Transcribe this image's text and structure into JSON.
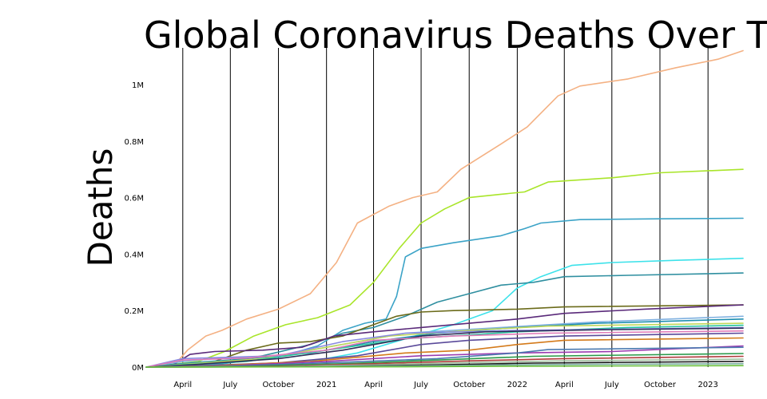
{
  "chart_data": {
    "type": "line",
    "title": "Global Coronavirus Deaths Over Time",
    "ylabel": "Deaths",
    "xlabel": "",
    "x_range": [
      "2020-01-22",
      "2023-03-09"
    ],
    "ylim": [
      0,
      1130000
    ],
    "y_ticks": [
      {
        "value": 0,
        "label": "0M"
      },
      {
        "value": 200000,
        "label": "0.2M"
      },
      {
        "value": 400000,
        "label": "0.4M"
      },
      {
        "value": 600000,
        "label": "0.6M"
      },
      {
        "value": 800000,
        "label": "0.8M"
      },
      {
        "value": 1000000,
        "label": "1M"
      }
    ],
    "x_ticks": [
      {
        "date": "2020-04-01",
        "label": "April"
      },
      {
        "date": "2020-07-01",
        "label": "July"
      },
      {
        "date": "2020-10-01",
        "label": "October"
      },
      {
        "date": "2021-01-01",
        "label": "2021"
      },
      {
        "date": "2021-04-01",
        "label": "April"
      },
      {
        "date": "2021-07-01",
        "label": "July"
      },
      {
        "date": "2021-10-01",
        "label": "October"
      },
      {
        "date": "2022-01-01",
        "label": "2022"
      },
      {
        "date": "2022-04-01",
        "label": "April"
      },
      {
        "date": "2022-07-01",
        "label": "July"
      },
      {
        "date": "2022-10-01",
        "label": "October"
      },
      {
        "date": "2023-01-01",
        "label": "2023"
      }
    ],
    "grid": {
      "vertical": true,
      "horizontal": false
    },
    "legend": "none",
    "series": [
      {
        "color": "#f4b183",
        "points": [
          [
            "2020-01-22",
            0
          ],
          [
            "2020-03-15",
            5000
          ],
          [
            "2020-04-10",
            60000
          ],
          [
            "2020-05-15",
            110000
          ],
          [
            "2020-06-15",
            130000
          ],
          [
            "2020-08-01",
            170000
          ],
          [
            "2020-10-01",
            205000
          ],
          [
            "2020-12-01",
            260000
          ],
          [
            "2021-01-20",
            370000
          ],
          [
            "2021-03-01",
            510000
          ],
          [
            "2021-05-01",
            570000
          ],
          [
            "2021-06-15",
            600000
          ],
          [
            "2021-08-01",
            620000
          ],
          [
            "2021-09-15",
            700000
          ],
          [
            "2021-12-01",
            790000
          ],
          [
            "2022-01-20",
            850000
          ],
          [
            "2022-03-20",
            960000
          ],
          [
            "2022-05-01",
            995000
          ],
          [
            "2022-08-01",
            1020000
          ],
          [
            "2022-11-01",
            1060000
          ],
          [
            "2023-01-20",
            1090000
          ],
          [
            "2023-03-09",
            1120000
          ]
        ]
      },
      {
        "color": "#a9e52a",
        "points": [
          [
            "2020-01-22",
            0
          ],
          [
            "2020-05-01",
            20000
          ],
          [
            "2020-06-20",
            55000
          ],
          [
            "2020-08-15",
            110000
          ],
          [
            "2020-10-15",
            150000
          ],
          [
            "2020-12-15",
            175000
          ],
          [
            "2021-02-15",
            220000
          ],
          [
            "2021-04-01",
            300000
          ],
          [
            "2021-05-20",
            420000
          ],
          [
            "2021-07-01",
            510000
          ],
          [
            "2021-08-15",
            560000
          ],
          [
            "2021-10-01",
            600000
          ],
          [
            "2021-12-01",
            612000
          ],
          [
            "2022-01-15",
            620000
          ],
          [
            "2022-03-01",
            655000
          ],
          [
            "2022-07-01",
            670000
          ],
          [
            "2022-10-01",
            688000
          ],
          [
            "2023-03-09",
            700000
          ]
        ]
      },
      {
        "color": "#3ba3c7",
        "points": [
          [
            "2020-01-22",
            0
          ],
          [
            "2020-03-20",
            2000
          ],
          [
            "2020-05-01",
            8000
          ],
          [
            "2020-06-15",
            12000
          ],
          [
            "2020-08-01",
            22000
          ],
          [
            "2020-10-01",
            35000
          ],
          [
            "2020-12-15",
            75000
          ],
          [
            "2021-02-01",
            130000
          ],
          [
            "2021-03-15",
            155000
          ],
          [
            "2021-04-25",
            170000
          ],
          [
            "2021-05-15",
            250000
          ],
          [
            "2021-06-01",
            390000
          ],
          [
            "2021-07-01",
            420000
          ],
          [
            "2021-09-01",
            440000
          ],
          [
            "2021-12-01",
            465000
          ],
          [
            "2022-01-15",
            490000
          ],
          [
            "2022-02-15",
            510000
          ],
          [
            "2022-05-01",
            522000
          ],
          [
            "2022-10-01",
            525000
          ],
          [
            "2023-03-09",
            527000
          ]
        ]
      },
      {
        "color": "#3de2ea",
        "points": [
          [
            "2020-01-22",
            0
          ],
          [
            "2020-05-01",
            1000
          ],
          [
            "2020-09-01",
            6000
          ],
          [
            "2020-12-01",
            20000
          ],
          [
            "2021-03-01",
            50000
          ],
          [
            "2021-06-01",
            100000
          ],
          [
            "2021-09-01",
            150000
          ],
          [
            "2021-11-15",
            200000
          ],
          [
            "2022-01-01",
            280000
          ],
          [
            "2022-02-15",
            320000
          ],
          [
            "2022-04-15",
            360000
          ],
          [
            "2022-07-01",
            370000
          ],
          [
            "2022-11-01",
            378000
          ],
          [
            "2023-03-09",
            385000
          ]
        ]
      },
      {
        "color": "#2f8fa0",
        "points": [
          [
            "2020-01-22",
            0
          ],
          [
            "2020-05-01",
            10000
          ],
          [
            "2020-07-01",
            20000
          ],
          [
            "2020-09-01",
            40000
          ],
          [
            "2020-12-01",
            80000
          ],
          [
            "2021-02-01",
            120000
          ],
          [
            "2021-04-01",
            140000
          ],
          [
            "2021-06-01",
            180000
          ],
          [
            "2021-08-01",
            230000
          ],
          [
            "2021-10-01",
            260000
          ],
          [
            "2021-12-01",
            290000
          ],
          [
            "2022-02-01",
            300000
          ],
          [
            "2022-04-01",
            320000
          ],
          [
            "2022-08-01",
            325000
          ],
          [
            "2023-03-09",
            333000
          ]
        ]
      },
      {
        "color": "#6b6b1a",
        "points": [
          [
            "2020-01-22",
            0
          ],
          [
            "2020-04-01",
            2000
          ],
          [
            "2020-06-01",
            20000
          ],
          [
            "2020-08-01",
            60000
          ],
          [
            "2020-10-01",
            85000
          ],
          [
            "2020-12-01",
            90000
          ],
          [
            "2021-02-01",
            110000
          ],
          [
            "2021-04-01",
            150000
          ],
          [
            "2021-05-15",
            180000
          ],
          [
            "2021-07-01",
            195000
          ],
          [
            "2021-09-01",
            200000
          ],
          [
            "2022-01-01",
            205000
          ],
          [
            "2022-04-01",
            213000
          ],
          [
            "2023-03-09",
            220000
          ]
        ]
      },
      {
        "color": "#5a2a7a",
        "points": [
          [
            "2020-01-22",
            0
          ],
          [
            "2020-03-15",
            10000
          ],
          [
            "2020-04-15",
            45000
          ],
          [
            "2020-06-01",
            55000
          ],
          [
            "2020-09-01",
            60000
          ],
          [
            "2020-11-15",
            70000
          ],
          [
            "2021-01-15",
            110000
          ],
          [
            "2021-04-01",
            125000
          ],
          [
            "2021-07-01",
            140000
          ],
          [
            "2021-10-01",
            155000
          ],
          [
            "2022-01-01",
            170000
          ],
          [
            "2022-04-01",
            190000
          ],
          [
            "2022-09-01",
            205000
          ],
          [
            "2023-03-09",
            220000
          ]
        ]
      },
      {
        "color": "#7fb0e0",
        "points": [
          [
            "2020-01-22",
            0
          ],
          [
            "2020-04-01",
            20000
          ],
          [
            "2020-06-01",
            30000
          ],
          [
            "2020-10-01",
            40000
          ],
          [
            "2021-01-01",
            70000
          ],
          [
            "2021-06-01",
            120000
          ],
          [
            "2021-12-01",
            140000
          ],
          [
            "2022-06-01",
            160000
          ],
          [
            "2023-03-09",
            180000
          ]
        ]
      },
      {
        "color": "#1f8fb0",
        "points": [
          [
            "2020-01-22",
            0
          ],
          [
            "2020-04-15",
            15000
          ],
          [
            "2020-07-01",
            25000
          ],
          [
            "2020-12-01",
            50000
          ],
          [
            "2021-04-01",
            90000
          ],
          [
            "2021-08-01",
            120000
          ],
          [
            "2022-01-01",
            140000
          ],
          [
            "2022-06-01",
            155000
          ],
          [
            "2023-03-09",
            170000
          ]
        ]
      },
      {
        "color": "#c0d85a",
        "points": [
          [
            "2020-01-22",
            0
          ],
          [
            "2020-04-01",
            10000
          ],
          [
            "2020-09-01",
            30000
          ],
          [
            "2021-01-01",
            70000
          ],
          [
            "2021-05-01",
            110000
          ],
          [
            "2021-10-01",
            130000
          ],
          [
            "2022-03-01",
            145000
          ],
          [
            "2023-03-09",
            155000
          ]
        ]
      },
      {
        "color": "#26c6a0",
        "points": [
          [
            "2020-01-22",
            0
          ],
          [
            "2020-04-01",
            8000
          ],
          [
            "2020-08-01",
            20000
          ],
          [
            "2021-01-01",
            60000
          ],
          [
            "2021-06-01",
            100000
          ],
          [
            "2022-01-01",
            125000
          ],
          [
            "2022-08-01",
            140000
          ],
          [
            "2023-03-09",
            148000
          ]
        ]
      },
      {
        "color": "#8a8ae0",
        "points": [
          [
            "2020-01-22",
            0
          ],
          [
            "2020-04-01",
            30000
          ],
          [
            "2020-10-01",
            40000
          ],
          [
            "2021-02-01",
            90000
          ],
          [
            "2021-06-01",
            120000
          ],
          [
            "2022-01-01",
            130000
          ],
          [
            "2023-03-09",
            140000
          ]
        ]
      },
      {
        "color": "#30305a",
        "points": [
          [
            "2020-01-22",
            0
          ],
          [
            "2020-05-01",
            10000
          ],
          [
            "2020-10-01",
            30000
          ],
          [
            "2021-02-01",
            60000
          ],
          [
            "2021-07-01",
            110000
          ],
          [
            "2021-11-01",
            125000
          ],
          [
            "2022-06-01",
            132000
          ],
          [
            "2023-03-09",
            138000
          ]
        ]
      },
      {
        "color": "#e07ab8",
        "points": [
          [
            "2020-01-22",
            0
          ],
          [
            "2020-04-01",
            25000
          ],
          [
            "2020-08-01",
            32000
          ],
          [
            "2021-01-01",
            60000
          ],
          [
            "2021-04-01",
            95000
          ],
          [
            "2021-09-01",
            110000
          ],
          [
            "2022-03-01",
            120000
          ],
          [
            "2023-03-09",
            128000
          ]
        ]
      },
      {
        "color": "#5a4a9a",
        "points": [
          [
            "2020-01-22",
            0
          ],
          [
            "2020-05-01",
            5000
          ],
          [
            "2020-10-01",
            15000
          ],
          [
            "2021-03-01",
            40000
          ],
          [
            "2021-07-01",
            80000
          ],
          [
            "2021-10-01",
            95000
          ],
          [
            "2022-04-01",
            110000
          ],
          [
            "2023-03-09",
            120000
          ]
        ]
      },
      {
        "color": "#d47a1a",
        "points": [
          [
            "2020-01-22",
            0
          ],
          [
            "2020-06-01",
            5000
          ],
          [
            "2020-12-01",
            20000
          ],
          [
            "2021-06-01",
            50000
          ],
          [
            "2021-10-01",
            60000
          ],
          [
            "2022-01-01",
            80000
          ],
          [
            "2022-04-01",
            95000
          ],
          [
            "2023-03-09",
            103000
          ]
        ]
      },
      {
        "color": "#9a3ab0",
        "points": [
          [
            "2020-01-22",
            0
          ],
          [
            "2020-07-01",
            5000
          ],
          [
            "2021-01-01",
            20000
          ],
          [
            "2021-07-01",
            40000
          ],
          [
            "2022-01-01",
            50000
          ],
          [
            "2022-07-01",
            55000
          ],
          [
            "2023-03-09",
            75000
          ]
        ]
      },
      {
        "color": "#4a7ab0",
        "points": [
          [
            "2020-01-22",
            0
          ],
          [
            "2020-08-01",
            5000
          ],
          [
            "2021-01-01",
            15000
          ],
          [
            "2021-08-01",
            30000
          ],
          [
            "2022-01-01",
            50000
          ],
          [
            "2022-03-01",
            62000
          ],
          [
            "2023-03-09",
            70000
          ]
        ]
      },
      {
        "color": "#2a9a4a",
        "points": [
          [
            "2020-01-22",
            0
          ],
          [
            "2020-08-01",
            3000
          ],
          [
            "2021-02-01",
            12000
          ],
          [
            "2021-08-01",
            25000
          ],
          [
            "2022-02-01",
            38000
          ],
          [
            "2023-03-09",
            48000
          ]
        ]
      },
      {
        "color": "#b03a3a",
        "points": [
          [
            "2020-01-22",
            0
          ],
          [
            "2020-10-01",
            3000
          ],
          [
            "2021-04-01",
            12000
          ],
          [
            "2021-10-01",
            22000
          ],
          [
            "2022-04-01",
            30000
          ],
          [
            "2023-03-09",
            38000
          ]
        ]
      },
      {
        "color": "#a0c0a0",
        "points": [
          [
            "2020-01-22",
            0
          ],
          [
            "2020-10-01",
            2000
          ],
          [
            "2021-04-01",
            8000
          ],
          [
            "2021-10-01",
            16000
          ],
          [
            "2022-04-01",
            22000
          ],
          [
            "2023-03-09",
            28000
          ]
        ]
      },
      {
        "color": "#1a1a1a",
        "points": [
          [
            "2020-01-22",
            0
          ],
          [
            "2021-01-01",
            2000
          ],
          [
            "2021-08-01",
            8000
          ],
          [
            "2022-02-01",
            14000
          ],
          [
            "2023-03-09",
            20000
          ]
        ]
      },
      {
        "color": "#7ab0a0",
        "points": [
          [
            "2020-01-22",
            0
          ],
          [
            "2020-12-01",
            1000
          ],
          [
            "2021-08-01",
            5000
          ],
          [
            "2022-03-01",
            9000
          ],
          [
            "2023-03-09",
            12000
          ]
        ]
      },
      {
        "color": "#6abf3a",
        "points": [
          [
            "2020-01-22",
            0
          ],
          [
            "2021-06-01",
            1000
          ],
          [
            "2022-01-01",
            3000
          ],
          [
            "2023-03-09",
            5000
          ]
        ]
      }
    ]
  }
}
